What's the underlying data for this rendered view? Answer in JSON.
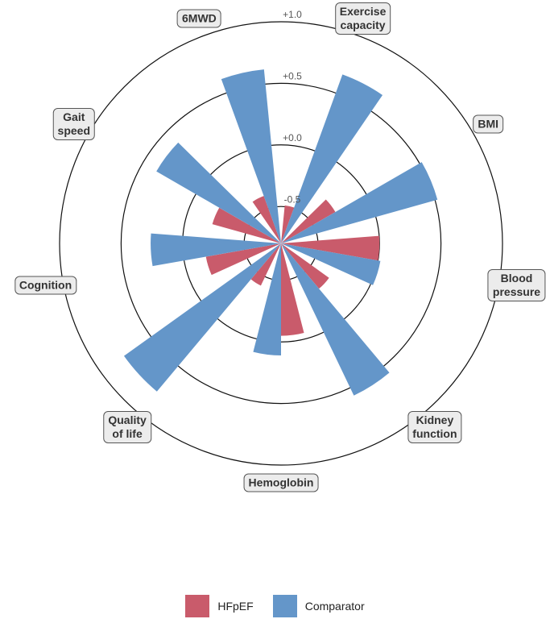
{
  "chart_data": {
    "type": "polar-bar",
    "categories": [
      "6MWD",
      "Exercise\ncapacity",
      "BMI",
      "Blood\npressure",
      "Kidney\nfunction",
      "Hemoglobin",
      "Quality\nof life",
      "Cognition",
      "Gait\nspeed"
    ],
    "series": [
      {
        "name": "HFpEF",
        "color": "#c95b6b",
        "values": [
          -0.39,
          -0.49,
          -0.29,
          0.0,
          -0.32,
          -0.05,
          -0.42,
          -0.18,
          -0.22
        ]
      },
      {
        "name": "Comparator",
        "color": "#6496c9",
        "values": [
          0.62,
          0.66,
          0.52,
          0.02,
          0.57,
          0.11,
          0.77,
          0.26,
          0.37
        ]
      }
    ],
    "ylim": [
      -0.8,
      1.0
    ],
    "yticks": [
      -0.5,
      {
        "value": 0.0,
        "label": "+0.0"
      },
      {
        "value": 0.5,
        "label": "+0.5"
      },
      {
        "value": 1.0,
        "label": "+1.0"
      }
    ],
    "grid": true,
    "legend": "bottom"
  }
}
